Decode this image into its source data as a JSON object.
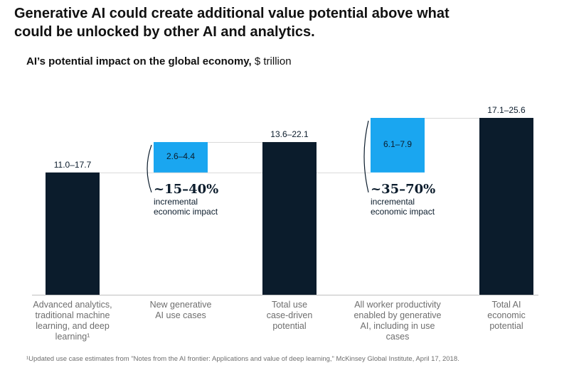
{
  "headline": "Generative AI could create additional value potential above what could be unlocked by other AI and analytics.",
  "subtitle": {
    "bold": "AI’s potential impact on the global economy,",
    "unit": " $ trillion"
  },
  "colors": {
    "dark": "#0b1c2c",
    "accent": "#1aa6f0",
    "axis": "#bfbfbf",
    "connector": "#d9d9d9",
    "label": "#6e6e6e"
  },
  "chart_data": {
    "type": "bar",
    "subtype": "waterfall",
    "unit": "$ trillion",
    "categories": [
      "Advanced analytics, traditional machine learning, and deep learning¹",
      "New generative AI use cases",
      "Total use case-driven potential",
      "All worker productivity enabled by generative AI, including in use cases",
      "Total AI economic potential"
    ],
    "category_lines": [
      [
        "Advanced analytics,",
        "traditional machine",
        "learning, and deep",
        "learning¹"
      ],
      [
        "New generative",
        "AI use cases"
      ],
      [
        "Total use",
        "case-driven",
        "potential"
      ],
      [
        "All worker productivity",
        "enabled by generative",
        "AI, including in use",
        "cases"
      ],
      [
        "Total AI",
        "economic",
        "potential"
      ]
    ],
    "bars": [
      {
        "label": "11.0–17.7",
        "low": 11.0,
        "high": 17.7,
        "base": 0,
        "top": 17.7,
        "kind": "total"
      },
      {
        "label": "2.6–4.4",
        "low": 2.6,
        "high": 4.4,
        "base": 17.7,
        "top": 22.1,
        "kind": "increment"
      },
      {
        "label": "13.6–22.1",
        "low": 13.6,
        "high": 22.1,
        "base": 0,
        "top": 22.1,
        "kind": "total"
      },
      {
        "label": "6.1–7.9",
        "low": 6.1,
        "high": 7.9,
        "base": 17.7,
        "top": 25.6,
        "kind": "increment"
      },
      {
        "label": "17.1–25.6",
        "low": 17.1,
        "high": 25.6,
        "base": 0,
        "top": 25.6,
        "kind": "total"
      }
    ],
    "annotations": [
      {
        "bar": 1,
        "pct": "~15–40%",
        "desc_lines": [
          "incremental",
          "economic impact"
        ]
      },
      {
        "bar": 3,
        "pct": "~35–70%",
        "desc_lines": [
          "incremental",
          "economic impact"
        ]
      }
    ],
    "ylim": [
      0,
      25.6
    ]
  },
  "footnote": "¹Updated use case estimates from \"Notes from the AI frontier: Applications and value of deep learning,\" McKinsey Global Institute, April 17, 2018."
}
